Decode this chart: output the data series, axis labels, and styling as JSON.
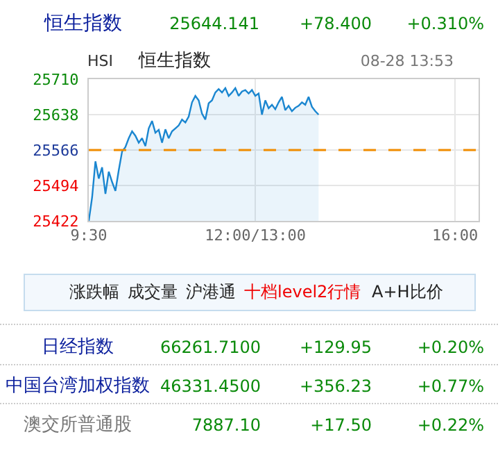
{
  "chart_data": {
    "type": "area",
    "title": "恒生指数",
    "subtitle": "HSI",
    "annotations": [
      "恒生指数",
      "25644.141",
      "+78.400",
      "+0.310%",
      "08-28 13:53",
      "涨跌幅",
      "成交量",
      "沪港通",
      "十档level2行情",
      "A+H比价",
      "日经指数",
      "66261.7100",
      "+129.95",
      "+0.20%",
      "中国台湾加权指数",
      "46331.4500",
      "+356.23",
      "+0.77%",
      "澳交所普通股",
      "7887.10",
      "+17.50",
      "+0.22%"
    ],
    "categories": [
      "9:30",
      null,
      null,
      null,
      null,
      null,
      null,
      null,
      null,
      null,
      null,
      null,
      null,
      null,
      null,
      null,
      null,
      null,
      null,
      null,
      null,
      null,
      null,
      null,
      null,
      null,
      null,
      null,
      null,
      null,
      null,
      null,
      null,
      null,
      null,
      null,
      null,
      null,
      null,
      null,
      null,
      null,
      null,
      null,
      null,
      null,
      null,
      null,
      null,
      null,
      "12:00/13:00",
      null,
      null,
      null,
      null,
      null,
      null,
      null,
      null,
      null,
      null,
      null,
      null,
      null,
      null,
      null,
      null,
      null,
      null,
      null,
      null,
      null,
      null,
      null,
      null,
      null,
      null,
      null,
      null,
      null,
      null,
      null,
      null,
      null,
      null,
      null,
      null,
      null,
      null,
      null,
      null,
      null,
      null,
      null,
      null,
      null,
      null,
      null,
      null,
      null,
      null,
      null,
      null,
      null,
      null,
      null,
      null,
      null,
      null,
      null,
      "16:00"
    ],
    "values": [
      25422,
      25470,
      25543,
      25508,
      25531,
      25477,
      25522,
      25501,
      25483,
      25525,
      25563,
      25572,
      25590,
      25604,
      25595,
      25581,
      25590,
      25574,
      25610,
      25625,
      25601,
      25607,
      25581,
      25608,
      25590,
      25604,
      25610,
      25616,
      25628,
      25622,
      25634,
      25663,
      25676,
      25667,
      25640,
      25628,
      25661,
      25667,
      25683,
      25690,
      25683,
      25692,
      25676,
      25683,
      25692,
      25676,
      25685,
      25688,
      25681,
      25688,
      25676,
      25681,
      25638,
      25667,
      25651,
      25658,
      25649,
      25663,
      25674,
      25647,
      25656,
      25645,
      25652,
      25656,
      25663,
      25658,
      25674,
      25654,
      25645,
      25638,
      null,
      null,
      null,
      null,
      null,
      null,
      null,
      null,
      null,
      null,
      null,
      null,
      null,
      null,
      null,
      null,
      null,
      null,
      null,
      null,
      null,
      null,
      null,
      null,
      null,
      null,
      null,
      null,
      null,
      null,
      null,
      null,
      null,
      null,
      null,
      null,
      null,
      null,
      null,
      null,
      null
    ],
    "color": "#1a86d0",
    "ylim": [
      25422,
      25710
    ],
    "yticks": [
      25422,
      25494,
      25566,
      25638,
      25710
    ],
    "grid": true,
    "legend": false,
    "ref_lines": [
      {
        "axis": "y",
        "value": 25566,
        "color": "#f08c00",
        "line_style": "dashed"
      }
    ]
  }
}
